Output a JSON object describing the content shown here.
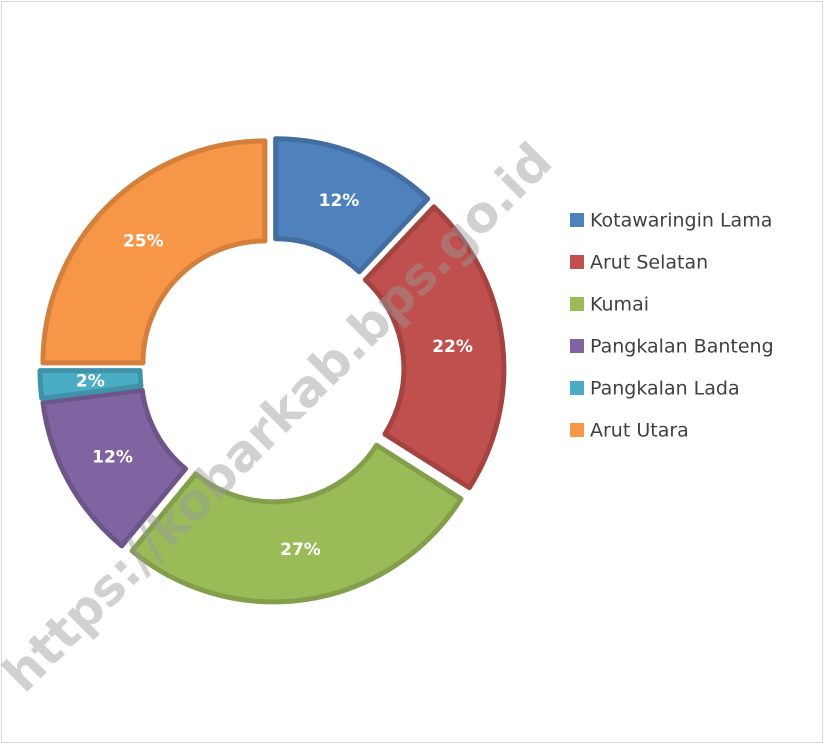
{
  "chart_data": {
    "type": "donut",
    "categories": [
      "Kotawaringin Lama",
      "Arut Selatan",
      "Kumai",
      "Pangkalan Banteng",
      "Pangkalan Lada",
      "Arut Utara"
    ],
    "values": [
      12,
      22,
      27,
      12,
      2,
      25
    ],
    "value_labels": [
      "12%",
      "22%",
      "27%",
      "12%",
      "2%",
      "25%"
    ],
    "colors": [
      "#4f81bd",
      "#c0504d",
      "#9bbb59",
      "#8064a2",
      "#4bacc6",
      "#f79646"
    ],
    "legend": "right",
    "watermark": "https://kobarkab.bps.go.id"
  }
}
